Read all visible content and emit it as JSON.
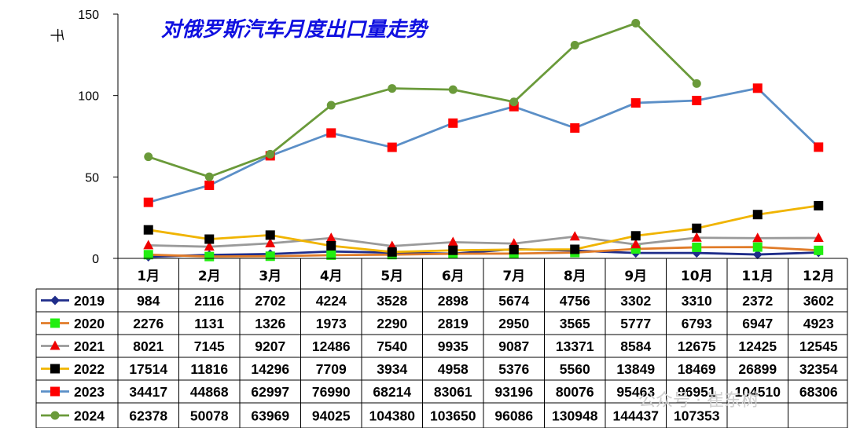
{
  "chart_data": {
    "type": "line",
    "title": "对俄罗斯汽车月度出口量走势",
    "ylabel": "千",
    "ylim": [
      0,
      150
    ],
    "yticks": [
      0,
      50,
      100,
      150
    ],
    "categories": [
      "1月",
      "2月",
      "3月",
      "4月",
      "5月",
      "6月",
      "7月",
      "8月",
      "9月",
      "10月",
      "11月",
      "12月"
    ],
    "grid": false,
    "legend": "data-table",
    "series": [
      {
        "name": "2019",
        "color": "#1f2d8a",
        "marker": "diamond",
        "values": [
          984,
          2116,
          2702,
          4224,
          3528,
          2898,
          5674,
          4756,
          3302,
          3310,
          2372,
          3602
        ],
        "table": [
          "984",
          "2116",
          "2702",
          "4224",
          "3528",
          "2898",
          "5674",
          "4756",
          "3302",
          "3310",
          "2372",
          "3602"
        ]
      },
      {
        "name": "2020",
        "color": "#e07b28",
        "marker": "square-green",
        "values": [
          2276,
          1131,
          1326,
          1973,
          2290,
          2819,
          2950,
          3565,
          5777,
          6793,
          6947,
          4923
        ],
        "table": [
          "2276",
          "1131",
          "1326",
          "1973",
          "2290",
          "2819",
          "2950",
          "3565",
          "5777",
          "6793",
          "6947",
          "4923"
        ]
      },
      {
        "name": "2021",
        "color": "#9a9a9a",
        "marker": "triangle",
        "values": [
          8021,
          7145,
          9207,
          12486,
          7540,
          9935,
          9087,
          13371,
          8584,
          12675,
          12425,
          12545
        ],
        "table": [
          "8021",
          "7145",
          "9207",
          "12486",
          "7540",
          "9935",
          "9087",
          "13371",
          "8584",
          "12675",
          "12425",
          "12545"
        ]
      },
      {
        "name": "2022",
        "color": "#f0b400",
        "marker": "square-black",
        "values": [
          17514,
          11816,
          14296,
          7709,
          3934,
          4958,
          5376,
          5560,
          13849,
          18469,
          26899,
          32354
        ],
        "table": [
          "17514",
          "11816",
          "14296",
          "7709",
          "3934",
          "4958",
          "5376",
          "5560",
          "13849",
          "18469",
          "26899",
          "32354"
        ]
      },
      {
        "name": "2023",
        "color": "#5b8fc7",
        "marker": "square-red",
        "values": [
          34417,
          44868,
          62997,
          76990,
          68214,
          83061,
          93196,
          80076,
          95463,
          96951,
          104510,
          68306
        ],
        "table": [
          "34417",
          "44868",
          "62997",
          "76990",
          "68214",
          "83061",
          "93196",
          "80076",
          "95463",
          "96951",
          "104510",
          "68306"
        ]
      },
      {
        "name": "2024",
        "color": "#6a9a3a",
        "marker": "circle",
        "values": [
          62378,
          50078,
          63969,
          94025,
          104380,
          103650,
          96086,
          130948,
          144437,
          107353,
          null,
          null
        ],
        "table": [
          "62378",
          "50078",
          "63969",
          "94025",
          "104380",
          "103650",
          "96086",
          "130948",
          "144437",
          "107353",
          "",
          ""
        ]
      }
    ]
  },
  "marker_colors": {
    "diamond": "#1f2d8a",
    "square-green": "#22ee11",
    "triangle": "#ee0000",
    "square-black": "#000000",
    "square-red": "#ff0000",
    "circle": "#6a9a3a"
  },
  "watermark": "公众号 · 崔东树"
}
